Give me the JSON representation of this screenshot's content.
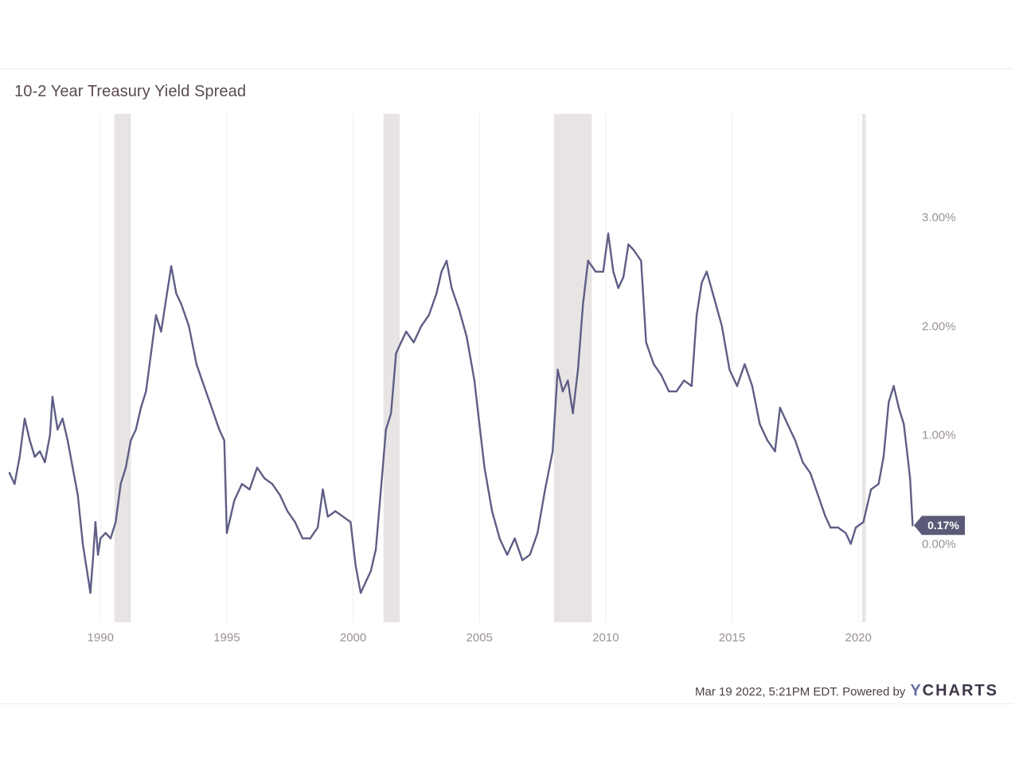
{
  "chart_data": {
    "type": "line",
    "title": "10-2 Year Treasury Yield Spread",
    "x_axis": {
      "type": "year",
      "range": [
        1986.4,
        2022.2
      ],
      "tick_labels": [
        "1990",
        "1995",
        "2000",
        "2005",
        "2010",
        "2015",
        "2020"
      ],
      "tick_values": [
        1990,
        1995,
        2000,
        2005,
        2010,
        2015,
        2020
      ]
    },
    "y_axis": {
      "unit": "%",
      "position": "right",
      "range": [
        -0.72,
        3.95
      ],
      "tick_labels": [
        "0.00%",
        "1.00%",
        "2.00%",
        "3.00%"
      ],
      "tick_values": [
        0,
        1,
        2,
        3
      ]
    },
    "grid": {
      "vertical": true,
      "horizontal": false
    },
    "recession_bands": [
      {
        "start": 1990.55,
        "end": 1991.2
      },
      {
        "start": 2001.2,
        "end": 2001.85
      },
      {
        "start": 2007.95,
        "end": 2009.45
      },
      {
        "start": 2020.15,
        "end": 2020.3
      }
    ],
    "series": [
      {
        "values": [
          [
            1986.4,
            0.65
          ],
          [
            1986.6,
            0.55
          ],
          [
            1986.8,
            0.8
          ],
          [
            1987.0,
            1.15
          ],
          [
            1987.2,
            0.95
          ],
          [
            1987.4,
            0.8
          ],
          [
            1987.6,
            0.85
          ],
          [
            1987.8,
            0.75
          ],
          [
            1988.0,
            1.0
          ],
          [
            1988.1,
            1.35
          ],
          [
            1988.3,
            1.05
          ],
          [
            1988.5,
            1.15
          ],
          [
            1988.7,
            0.95
          ],
          [
            1988.9,
            0.7
          ],
          [
            1989.1,
            0.45
          ],
          [
            1989.3,
            0.0
          ],
          [
            1989.5,
            -0.3
          ],
          [
            1989.6,
            -0.45
          ],
          [
            1989.7,
            -0.15
          ],
          [
            1989.8,
            0.2
          ],
          [
            1989.9,
            -0.1
          ],
          [
            1990.0,
            0.05
          ],
          [
            1990.2,
            0.1
          ],
          [
            1990.4,
            0.05
          ],
          [
            1990.6,
            0.2
          ],
          [
            1990.8,
            0.55
          ],
          [
            1991.0,
            0.7
          ],
          [
            1991.2,
            0.95
          ],
          [
            1991.4,
            1.05
          ],
          [
            1991.6,
            1.25
          ],
          [
            1991.8,
            1.4
          ],
          [
            1992.0,
            1.75
          ],
          [
            1992.2,
            2.1
          ],
          [
            1992.4,
            1.95
          ],
          [
            1992.6,
            2.25
          ],
          [
            1992.8,
            2.55
          ],
          [
            1993.0,
            2.3
          ],
          [
            1993.2,
            2.2
          ],
          [
            1993.5,
            2.0
          ],
          [
            1993.8,
            1.65
          ],
          [
            1994.1,
            1.45
          ],
          [
            1994.4,
            1.25
          ],
          [
            1994.7,
            1.05
          ],
          [
            1994.9,
            0.95
          ],
          [
            1995.0,
            0.1
          ],
          [
            1995.3,
            0.4
          ],
          [
            1995.6,
            0.55
          ],
          [
            1995.9,
            0.5
          ],
          [
            1996.2,
            0.7
          ],
          [
            1996.5,
            0.6
          ],
          [
            1996.8,
            0.55
          ],
          [
            1997.1,
            0.45
          ],
          [
            1997.4,
            0.3
          ],
          [
            1997.7,
            0.2
          ],
          [
            1998.0,
            0.05
          ],
          [
            1998.3,
            0.05
          ],
          [
            1998.6,
            0.15
          ],
          [
            1998.8,
            0.5
          ],
          [
            1999.0,
            0.25
          ],
          [
            1999.3,
            0.3
          ],
          [
            1999.6,
            0.25
          ],
          [
            1999.9,
            0.2
          ],
          [
            2000.1,
            -0.2
          ],
          [
            2000.3,
            -0.45
          ],
          [
            2000.5,
            -0.35
          ],
          [
            2000.7,
            -0.25
          ],
          [
            2000.9,
            -0.05
          ],
          [
            2001.1,
            0.5
          ],
          [
            2001.3,
            1.05
          ],
          [
            2001.5,
            1.2
          ],
          [
            2001.7,
            1.75
          ],
          [
            2001.9,
            1.85
          ],
          [
            2002.1,
            1.95
          ],
          [
            2002.4,
            1.85
          ],
          [
            2002.7,
            2.0
          ],
          [
            2003.0,
            2.1
          ],
          [
            2003.3,
            2.3
          ],
          [
            2003.5,
            2.5
          ],
          [
            2003.7,
            2.6
          ],
          [
            2003.9,
            2.35
          ],
          [
            2004.2,
            2.15
          ],
          [
            2004.5,
            1.9
          ],
          [
            2004.8,
            1.5
          ],
          [
            2005.0,
            1.1
          ],
          [
            2005.2,
            0.7
          ],
          [
            2005.5,
            0.3
          ],
          [
            2005.8,
            0.05
          ],
          [
            2006.1,
            -0.1
          ],
          [
            2006.4,
            0.05
          ],
          [
            2006.7,
            -0.15
          ],
          [
            2007.0,
            -0.1
          ],
          [
            2007.3,
            0.1
          ],
          [
            2007.6,
            0.5
          ],
          [
            2007.9,
            0.85
          ],
          [
            2008.1,
            1.6
          ],
          [
            2008.3,
            1.4
          ],
          [
            2008.5,
            1.5
          ],
          [
            2008.7,
            1.2
          ],
          [
            2008.9,
            1.6
          ],
          [
            2009.1,
            2.2
          ],
          [
            2009.3,
            2.6
          ],
          [
            2009.6,
            2.5
          ],
          [
            2009.9,
            2.5
          ],
          [
            2010.1,
            2.85
          ],
          [
            2010.3,
            2.5
          ],
          [
            2010.5,
            2.35
          ],
          [
            2010.7,
            2.45
          ],
          [
            2010.9,
            2.75
          ],
          [
            2011.1,
            2.7
          ],
          [
            2011.4,
            2.6
          ],
          [
            2011.6,
            1.85
          ],
          [
            2011.9,
            1.65
          ],
          [
            2012.2,
            1.55
          ],
          [
            2012.5,
            1.4
          ],
          [
            2012.8,
            1.4
          ],
          [
            2013.1,
            1.5
          ],
          [
            2013.4,
            1.45
          ],
          [
            2013.6,
            2.1
          ],
          [
            2013.8,
            2.4
          ],
          [
            2014.0,
            2.5
          ],
          [
            2014.3,
            2.25
          ],
          [
            2014.6,
            2.0
          ],
          [
            2014.9,
            1.6
          ],
          [
            2015.2,
            1.45
          ],
          [
            2015.5,
            1.65
          ],
          [
            2015.8,
            1.45
          ],
          [
            2016.1,
            1.1
          ],
          [
            2016.4,
            0.95
          ],
          [
            2016.7,
            0.85
          ],
          [
            2016.9,
            1.25
          ],
          [
            2017.2,
            1.1
          ],
          [
            2017.5,
            0.95
          ],
          [
            2017.8,
            0.75
          ],
          [
            2018.1,
            0.65
          ],
          [
            2018.4,
            0.45
          ],
          [
            2018.7,
            0.25
          ],
          [
            2018.9,
            0.15
          ],
          [
            2019.2,
            0.15
          ],
          [
            2019.5,
            0.1
          ],
          [
            2019.7,
            0.0
          ],
          [
            2019.9,
            0.15
          ],
          [
            2020.2,
            0.2
          ],
          [
            2020.5,
            0.5
          ],
          [
            2020.8,
            0.55
          ],
          [
            2021.0,
            0.8
          ],
          [
            2021.2,
            1.3
          ],
          [
            2021.4,
            1.45
          ],
          [
            2021.6,
            1.25
          ],
          [
            2021.8,
            1.1
          ],
          [
            2021.95,
            0.8
          ],
          [
            2022.05,
            0.6
          ],
          [
            2022.15,
            0.17
          ]
        ]
      }
    ],
    "current_value_label": "0.17%",
    "current_value": 0.17,
    "colors": {
      "line": "#5e5e86",
      "recession_band": "#e9e4e4",
      "label_bg": "#5b5a78",
      "label_text": "#ffffff",
      "tick_text": "#9a9098",
      "grid": "#efefef"
    }
  },
  "footer": {
    "timestamp": "Mar 19 2022, 5:21PM EDT. Powered by",
    "brand_y": "Y",
    "brand_rest": "CHARTS"
  }
}
